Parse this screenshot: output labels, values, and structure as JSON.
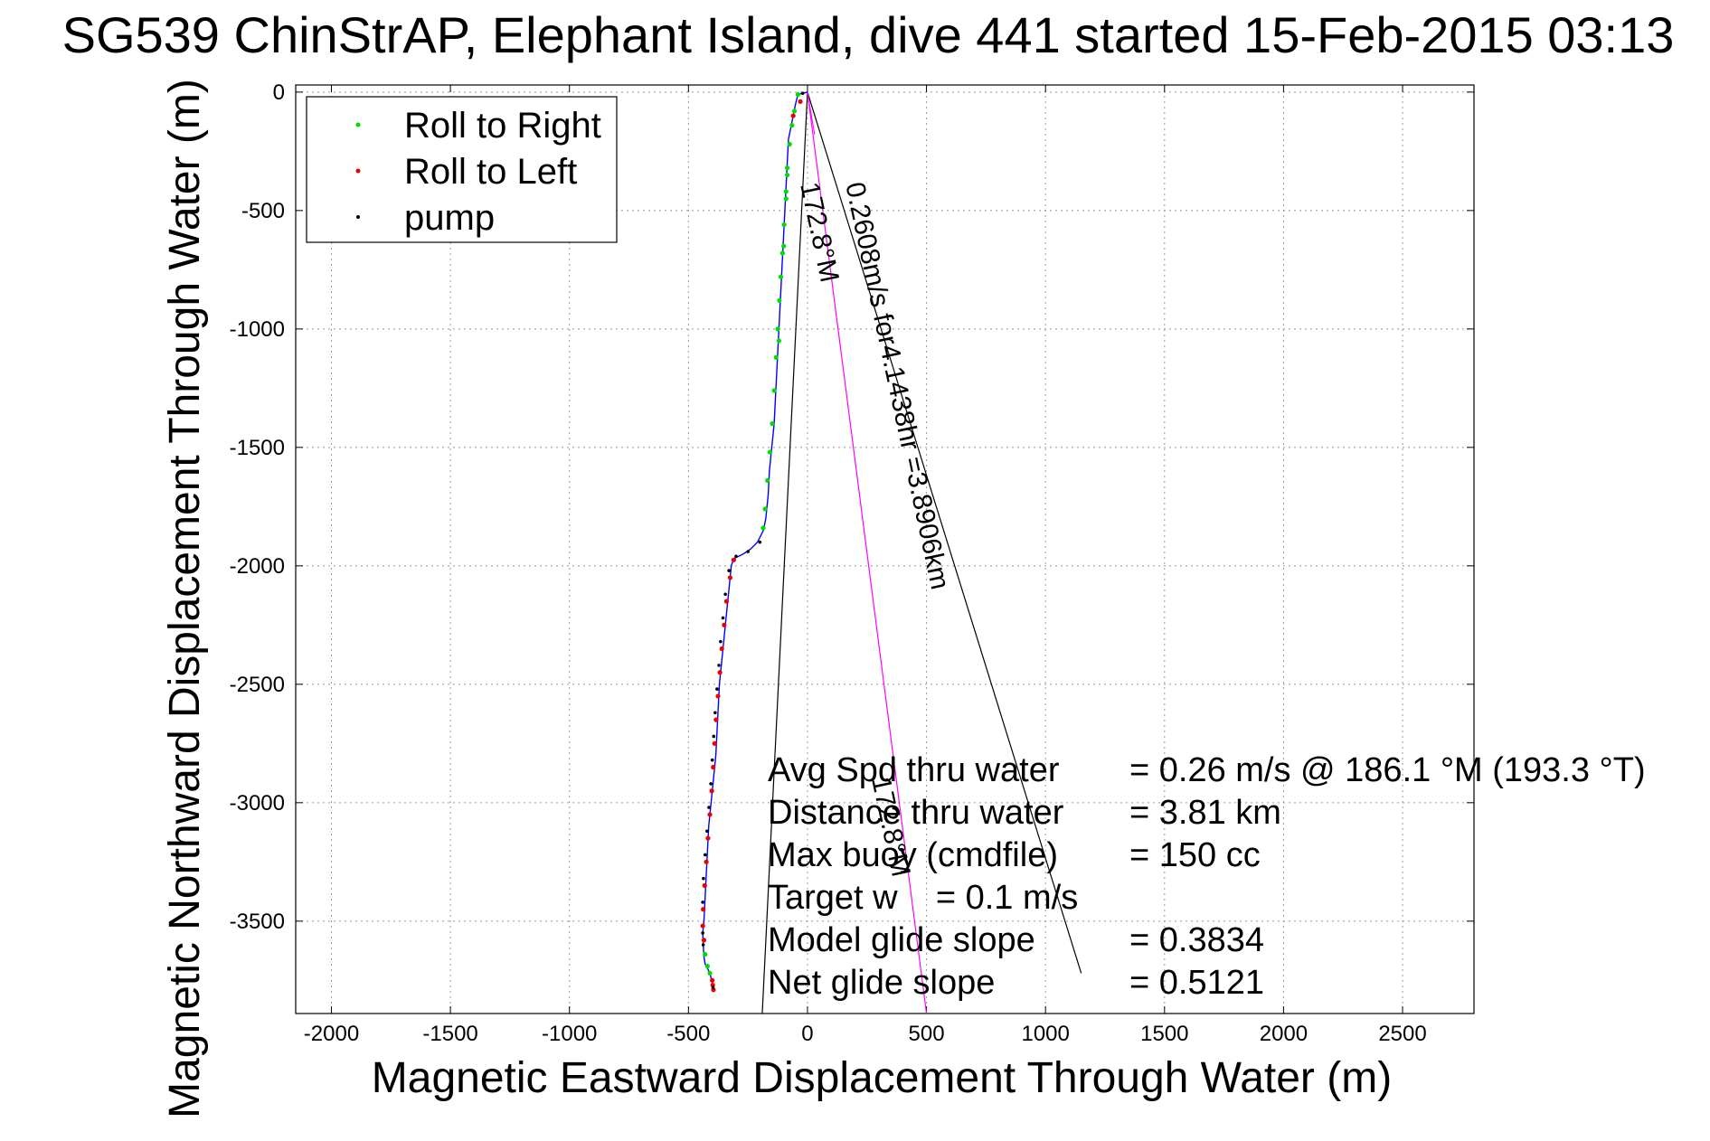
{
  "chart_data": {
    "type": "scatter",
    "title": "SG539 ChinStrAP, Elephant Island, dive 441 started 15-Feb-2015 03:13",
    "xlabel": "Magnetic Eastward Displacement Through Water (m)",
    "ylabel": "Magnetic Northward Displacement Through Water (m)",
    "xlim": [
      -2150,
      2800
    ],
    "ylim": [
      -3890,
      30
    ],
    "xticks": [
      -2000,
      -1500,
      -1000,
      -500,
      0,
      500,
      1000,
      1500,
      2000,
      2500
    ],
    "yticks": [
      0,
      -500,
      -1000,
      -1500,
      -2000,
      -2500,
      -3000,
      -3500
    ],
    "grid": true,
    "legend": {
      "position": "top-left",
      "entries": [
        {
          "label": "Roll to Right",
          "color": "#00dd00"
        },
        {
          "label": "Roll to Left",
          "color": "#ee0000"
        },
        {
          "label": "pump",
          "color": "#000000"
        }
      ]
    },
    "track_color": "#0000ff",
    "track": {
      "x": [
        0,
        -40,
        -50,
        -60,
        -70,
        -80,
        -85,
        -90,
        -95,
        -100,
        -105,
        -110,
        -115,
        -120,
        -125,
        -130,
        -135,
        -140,
        -150,
        -160,
        -165,
        -175,
        -185,
        -210,
        -240,
        -270,
        -290,
        -310,
        -320,
        -330,
        -340,
        -350,
        -360,
        -365,
        -370,
        -375,
        -380,
        -385,
        -390,
        -395,
        -400,
        -405,
        -410,
        -415,
        -420,
        -425,
        -430,
        -435,
        -440,
        -438,
        -435,
        -430,
        -420,
        -410,
        -405,
        -400,
        -395
      ],
      "y": [
        0,
        -10,
        -50,
        -100,
        -150,
        -200,
        -300,
        -400,
        -500,
        -600,
        -700,
        -800,
        -900,
        -1000,
        -1100,
        -1200,
        -1300,
        -1400,
        -1500,
        -1600,
        -1700,
        -1800,
        -1850,
        -1900,
        -1930,
        -1950,
        -1960,
        -1970,
        -2000,
        -2100,
        -2200,
        -2300,
        -2400,
        -2450,
        -2500,
        -2600,
        -2700,
        -2800,
        -2850,
        -2900,
        -2950,
        -3000,
        -3050,
        -3100,
        -3200,
        -3300,
        -3400,
        -3500,
        -3550,
        -3600,
        -3650,
        -3680,
        -3700,
        -3720,
        -3740,
        -3760,
        -3790
      ]
    },
    "roll_right_points": {
      "x": [
        -40,
        -55,
        -65,
        -75,
        -85,
        -90,
        -98,
        -105,
        -112,
        -118,
        -125,
        -132,
        -140,
        -148,
        -158,
        -168,
        -178,
        -186,
        -120,
        -100,
        -90,
        -85,
        -430,
        -420,
        -410
      ],
      "y": [
        -10,
        -80,
        -140,
        -220,
        -320,
        -420,
        -560,
        -680,
        -780,
        -880,
        -1000,
        -1120,
        -1260,
        -1400,
        -1520,
        -1640,
        -1760,
        -1840,
        -1050,
        -650,
        -450,
        -350,
        -3640,
        -3690,
        -3720
      ]
    },
    "roll_left_points": {
      "x": [
        -30,
        -60,
        -310,
        -325,
        -340,
        -350,
        -360,
        -368,
        -376,
        -384,
        -390,
        -396,
        -402,
        -410,
        -418,
        -425,
        -432,
        -438,
        -440,
        -435,
        -400,
        -398,
        -395
      ],
      "y": [
        -40,
        -100,
        -1975,
        -2050,
        -2150,
        -2250,
        -2350,
        -2450,
        -2550,
        -2650,
        -2750,
        -2850,
        -2950,
        -3050,
        -3150,
        -3250,
        -3350,
        -3450,
        -3520,
        -3580,
        -3750,
        -3770,
        -3790
      ]
    },
    "pump_points": {
      "x": [
        -20,
        -330,
        -345,
        -355,
        -365,
        -372,
        -380,
        -388,
        -394,
        -400,
        -406,
        -414,
        -422,
        -430,
        -437,
        -440,
        -440,
        -438,
        -397,
        -300,
        -250,
        -200
      ],
      "y": [
        -5,
        -2020,
        -2120,
        -2220,
        -2320,
        -2420,
        -2520,
        -2620,
        -2720,
        -2820,
        -2920,
        -3020,
        -3120,
        -3220,
        -3320,
        -3420,
        -3550,
        -3600,
        -3780,
        -1960,
        -1940,
        -1900
      ]
    },
    "lines": [
      {
        "style": "black",
        "x": [
          0,
          -190
        ],
        "y": [
          0,
          -3890
        ]
      },
      {
        "style": "black",
        "x": [
          0,
          1150
        ],
        "y": [
          0,
          -3720
        ]
      },
      {
        "style": "magenta",
        "x": [
          0,
          500
        ],
        "y": [
          0,
          -3890
        ]
      },
      {
        "style": "magenta-thin",
        "x": [
          0,
          30
        ],
        "y": [
          0,
          -180
        ]
      }
    ],
    "line_labels": [
      {
        "text": "172.8°M",
        "x": -30,
        "y": -390
      },
      {
        "text": "0.2608m/s for4.1438hr =3.8906km",
        "x": 160,
        "y": -390
      },
      {
        "text": "172.8°M",
        "x": 270,
        "y": -2900
      }
    ],
    "annotations": [
      {
        "label": "Avg Spd thru water",
        "value": "=  0.26 m/s @ 186.1 °M (193.3 °T)"
      },
      {
        "label": "Distance thru water",
        "value": "=  3.81 km"
      },
      {
        "label": "Max buoy (cmdfile)",
        "value": "= 150 cc"
      },
      {
        "label": "Target w    = 0.1 m/s",
        "value": ""
      },
      {
        "label": "Model glide slope",
        "value": "= 0.3834"
      },
      {
        "label": "Net glide slope",
        "value": "= 0.5121"
      }
    ]
  }
}
